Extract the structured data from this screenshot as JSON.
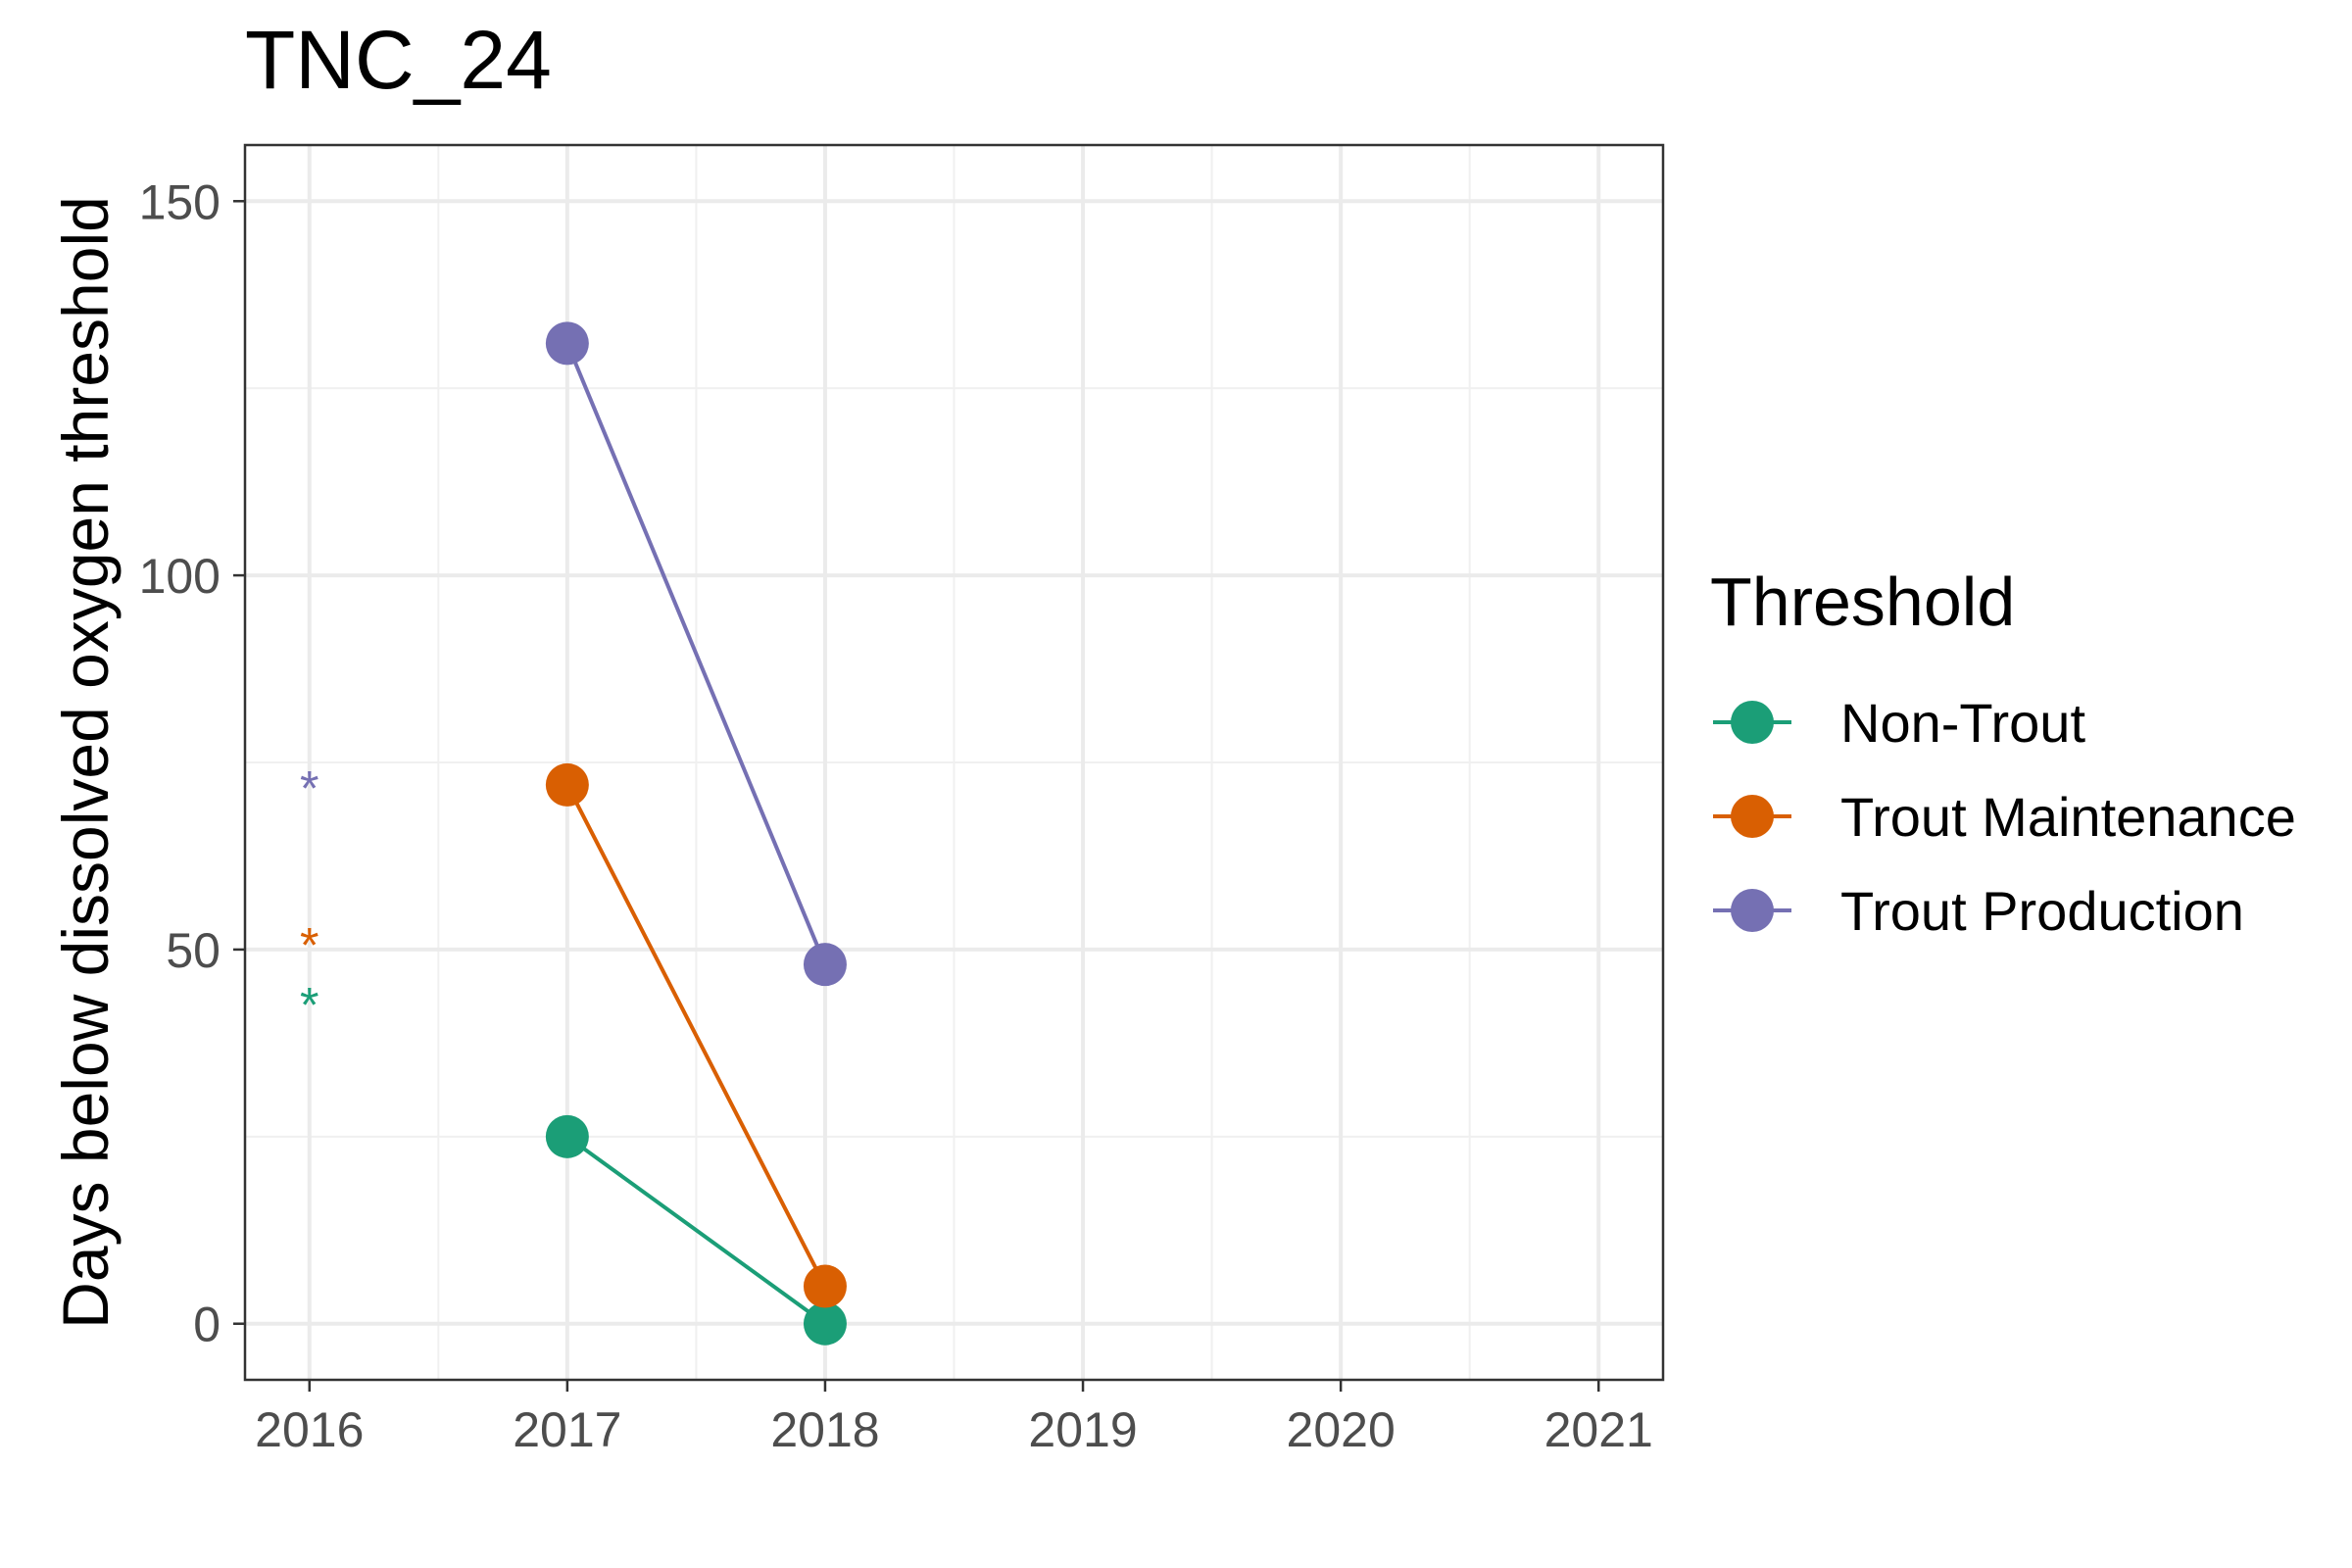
{
  "chart_data": {
    "type": "line",
    "title": "TNC_24",
    "xlabel": "",
    "ylabel": "Days below dissolved oxygen threshold",
    "x_ticks": [
      "2016",
      "2017",
      "2018",
      "2019",
      "2020",
      "2021"
    ],
    "y_ticks": [
      "0",
      "50",
      "100",
      "150"
    ],
    "xlim": [
      2015.75,
      2021.25
    ],
    "ylim": [
      -7.5,
      157.5
    ],
    "grid": true,
    "legend": {
      "title": "Threshold",
      "position": "right"
    },
    "series": [
      {
        "name": "Non-Trout",
        "color": "#1b9e77",
        "x": [
          2017,
          2018
        ],
        "y": [
          25,
          0
        ],
        "flag_x": 2016,
        "flag_y": 44,
        "flag_label": "*"
      },
      {
        "name": "Trout Maintenance",
        "color": "#d95f02",
        "x": [
          2017,
          2018
        ],
        "y": [
          72,
          5
        ],
        "flag_x": 2016,
        "flag_y": 52,
        "flag_label": "*"
      },
      {
        "name": "Trout Production",
        "color": "#7570b3",
        "x": [
          2017,
          2018
        ],
        "y": [
          131,
          48
        ],
        "flag_x": 2016,
        "flag_y": 73,
        "flag_label": "*"
      }
    ]
  }
}
